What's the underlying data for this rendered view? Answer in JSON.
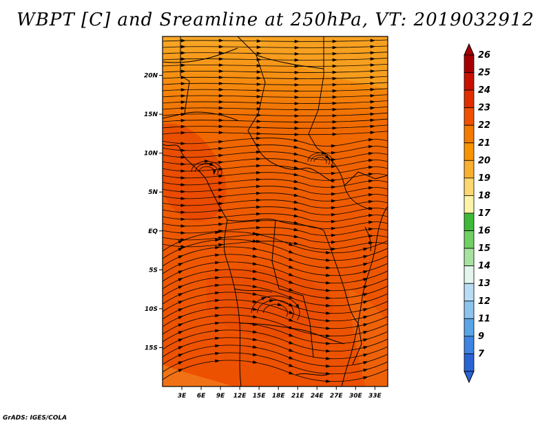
{
  "title": "WBPT [C] and Sreamline at 250hPa, VT: 2019032912",
  "credit": "GrADS: IGES/COLA",
  "map": {
    "lon_range": [
      0,
      35
    ],
    "lat_range": [
      -20,
      25
    ],
    "lat_ticks": [
      {
        "value": 20,
        "label": "20N"
      },
      {
        "value": 15,
        "label": "15N"
      },
      {
        "value": 10,
        "label": "10N"
      },
      {
        "value": 5,
        "label": "5N"
      },
      {
        "value": 0,
        "label": "EQ"
      },
      {
        "value": -5,
        "label": "5S"
      },
      {
        "value": -10,
        "label": "10S"
      },
      {
        "value": -15,
        "label": "15S"
      }
    ],
    "lon_ticks": [
      {
        "value": 3,
        "label": "3E"
      },
      {
        "value": 6,
        "label": "6E"
      },
      {
        "value": 9,
        "label": "9E"
      },
      {
        "value": 12,
        "label": "12E"
      },
      {
        "value": 15,
        "label": "15E"
      },
      {
        "value": 18,
        "label": "18E"
      },
      {
        "value": 21,
        "label": "21E"
      },
      {
        "value": 24,
        "label": "24E"
      },
      {
        "value": 27,
        "label": "27E"
      },
      {
        "value": 30,
        "label": "30E"
      },
      {
        "value": 33,
        "label": "33E"
      }
    ]
  },
  "colorbar": {
    "levels": [
      {
        "label": "26",
        "color": "#a50000"
      },
      {
        "label": "25",
        "color": "#c81000"
      },
      {
        "label": "24",
        "color": "#e02e00"
      },
      {
        "label": "23",
        "color": "#f05000"
      },
      {
        "label": "22",
        "color": "#f57a00"
      },
      {
        "label": "21",
        "color": "#f79400"
      },
      {
        "label": "20",
        "color": "#f9b030"
      },
      {
        "label": "19",
        "color": "#fbd870"
      },
      {
        "label": "18",
        "color": "#fdf4a8"
      },
      {
        "label": "17",
        "color": "#3fba38"
      },
      {
        "label": "16",
        "color": "#72cf64"
      },
      {
        "label": "15",
        "color": "#a8e2a0"
      },
      {
        "label": "14",
        "color": "#e4f5ee"
      },
      {
        "label": "13",
        "color": "#b8dcf4"
      },
      {
        "label": "12",
        "color": "#8cc4ee"
      },
      {
        "label": "11",
        "color": "#5aa4e8"
      },
      {
        "label": "9",
        "color": "#3e84e0"
      },
      {
        "label": "7",
        "color": "#2a64d4"
      }
    ]
  }
}
